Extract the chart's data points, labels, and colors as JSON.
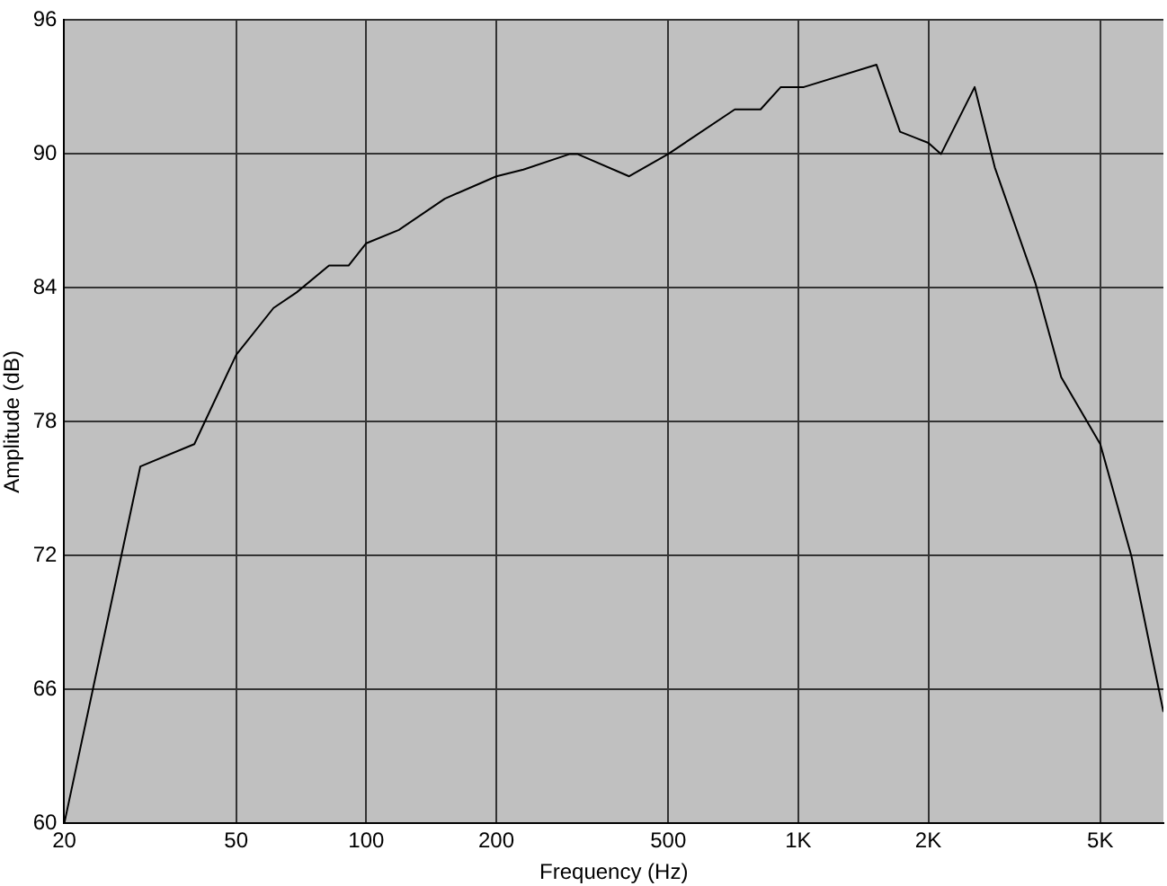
{
  "chart_data": {
    "type": "line",
    "xlabel": "Frequency (Hz)",
    "ylabel": "Amplitude (dB)",
    "x": [
      20,
      30,
      40,
      50,
      61,
      69,
      82,
      91,
      100,
      119,
      152,
      200,
      231,
      296,
      308,
      406,
      500,
      713,
      818,
      911,
      1030,
      1517,
      1720,
      2000,
      2140,
      2560,
      2850,
      3540,
      4060,
      5000,
      5900,
      7000
    ],
    "series": [
      {
        "color": "#000000",
        "values": [
          60,
          76,
          77,
          81,
          83.1,
          83.8,
          85,
          85,
          86,
          86.6,
          88,
          89,
          89.3,
          90,
          90,
          89,
          90,
          92,
          92,
          93,
          93,
          94,
          91,
          90.5,
          90,
          93,
          89.4,
          84.2,
          80,
          77,
          72,
          65
        ]
      }
    ],
    "log": "x",
    "xlim": [
      20,
      7000
    ],
    "xticks": [
      20,
      50,
      100,
      200,
      500,
      {
        "value": 1000,
        "label": "1K"
      },
      {
        "value": 2000,
        "label": "2K"
      },
      {
        "value": 5000,
        "label": "5K"
      }
    ],
    "ylim": [
      60,
      96
    ],
    "yticks": [
      60,
      66,
      72,
      78,
      84,
      90,
      96
    ],
    "grid": true,
    "legend": false,
    "marker": "none",
    "line_style": "solid"
  }
}
